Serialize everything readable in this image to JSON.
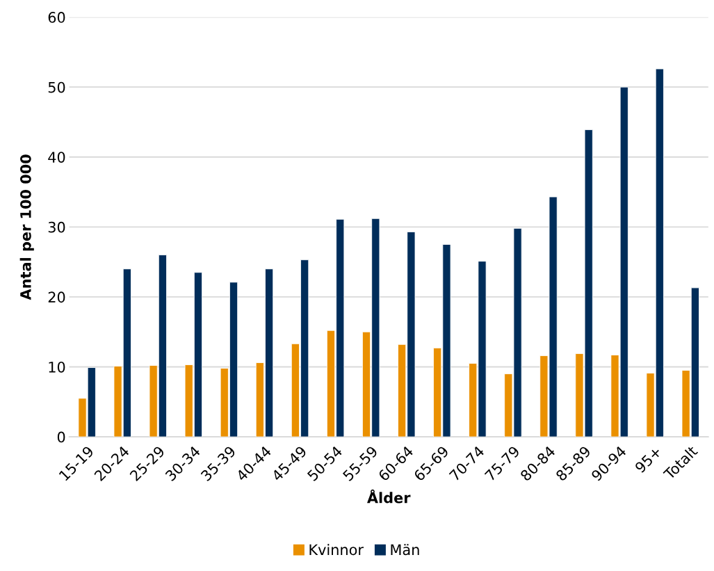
{
  "chart_data": {
    "type": "bar",
    "xlabel": "Ålder",
    "ylabel": "Antal per 100 000",
    "categories": [
      "15-19",
      "20-24",
      "25-29",
      "30-34",
      "35-39",
      "40-44",
      "45-49",
      "50-54",
      "55-59",
      "60-64",
      "65-69",
      "70-74",
      "75-79",
      "80-84",
      "85-89",
      "90-94",
      "95+",
      "Totalt"
    ],
    "series": [
      {
        "name": "Kvinnor",
        "color": "#ea9000",
        "values": [
          5.5,
          10.1,
          10.2,
          10.3,
          9.8,
          10.6,
          13.3,
          15.2,
          15.0,
          13.2,
          12.7,
          10.5,
          9.0,
          11.6,
          11.9,
          11.7,
          9.1,
          9.5
        ]
      },
      {
        "name": "Män",
        "color": "#002d5a",
        "values": [
          9.9,
          24.0,
          26.0,
          23.5,
          22.1,
          24.0,
          25.3,
          31.1,
          31.2,
          29.3,
          27.5,
          25.1,
          29.8,
          34.3,
          43.9,
          50.0,
          52.6,
          21.3
        ]
      }
    ],
    "ylim": [
      0,
      60
    ],
    "yticks": [
      0,
      10,
      20,
      30,
      40,
      50,
      60
    ],
    "grid": "y",
    "legend": "bottom"
  }
}
